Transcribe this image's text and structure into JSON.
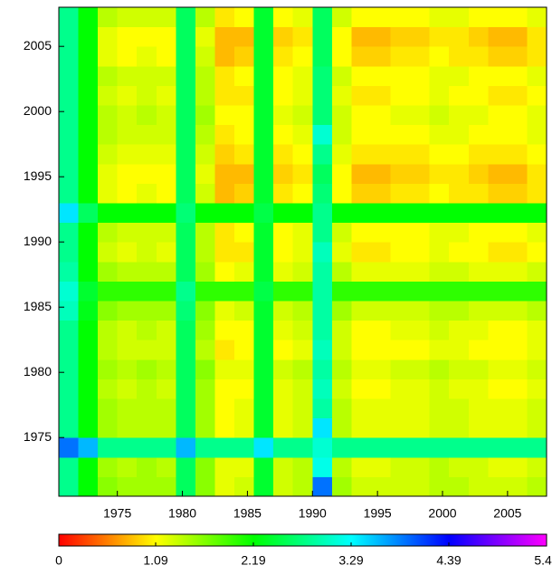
{
  "chart_data": {
    "type": "heatmap",
    "colormap": "hsv",
    "xbins": [
      1970.5,
      1972,
      1973.5,
      1975,
      1976.5,
      1978,
      1979.5,
      1981,
      1982.5,
      1984,
      1985.5,
      1987,
      1988.5,
      1990,
      1991.5,
      1993,
      1994.5,
      1996,
      1997.5,
      1999,
      2000.5,
      2002,
      2003.5,
      2005,
      2006.5,
      2008
    ],
    "ybins": [
      1970.5,
      1972,
      1973.5,
      1975,
      1976.5,
      1978,
      1979.5,
      1981,
      1982.5,
      1984,
      1985.5,
      1987,
      1988.5,
      1990,
      1991.5,
      1993,
      1994.5,
      1996,
      1997.5,
      1999,
      2000.5,
      2002,
      2003.5,
      2005,
      2006.5,
      2008
    ],
    "values": [
      [
        2.8,
        2.2,
        1.6,
        1.5,
        1.5,
        1.5,
        2.6,
        1.6,
        1.2,
        1.3,
        2.4,
        1.3,
        1.4,
        3.9,
        1.5,
        1.3,
        1.3,
        1.3,
        1.3,
        1.4,
        1.4,
        1.3,
        1.3,
        1.3,
        1.4
      ],
      [
        2.8,
        2.2,
        1.5,
        1.4,
        1.5,
        1.4,
        2.6,
        1.6,
        1.2,
        1.2,
        2.4,
        1.3,
        1.4,
        3.2,
        1.4,
        1.2,
        1.2,
        1.3,
        1.3,
        1.4,
        1.3,
        1.3,
        1.2,
        1.2,
        1.3
      ],
      [
        3.9,
        3.6,
        2.8,
        2.8,
        2.8,
        2.8,
        3.6,
        2.8,
        2.8,
        2.8,
        3.4,
        2.8,
        2.8,
        3.1,
        2.8,
        2.8,
        2.8,
        2.8,
        2.8,
        2.8,
        2.8,
        2.8,
        2.8,
        2.8,
        2.8
      ],
      [
        2.8,
        2.2,
        1.5,
        1.4,
        1.4,
        1.4,
        2.6,
        1.5,
        1.1,
        1.2,
        2.4,
        1.2,
        1.3,
        3.4,
        1.4,
        1.2,
        1.2,
        1.2,
        1.2,
        1.3,
        1.3,
        1.2,
        1.2,
        1.2,
        1.3
      ],
      [
        2.8,
        2.2,
        1.5,
        1.4,
        1.4,
        1.4,
        2.6,
        1.5,
        1.1,
        1.2,
        2.4,
        1.2,
        1.3,
        2.9,
        1.4,
        1.2,
        1.2,
        1.2,
        1.2,
        1.3,
        1.3,
        1.2,
        1.2,
        1.2,
        1.3
      ],
      [
        2.8,
        2.2,
        1.4,
        1.3,
        1.4,
        1.3,
        2.6,
        1.5,
        1.1,
        1.1,
        2.4,
        1.2,
        1.3,
        3.0,
        1.3,
        1.1,
        1.1,
        1.2,
        1.2,
        1.3,
        1.2,
        1.2,
        1.1,
        1.1,
        1.2
      ],
      [
        2.8,
        2.2,
        1.5,
        1.4,
        1.5,
        1.4,
        2.6,
        1.6,
        1.2,
        1.2,
        2.4,
        1.3,
        1.4,
        2.9,
        1.4,
        1.2,
        1.2,
        1.3,
        1.3,
        1.4,
        1.3,
        1.3,
        1.2,
        1.2,
        1.3
      ],
      [
        2.8,
        2.2,
        1.4,
        1.3,
        1.3,
        1.3,
        2.6,
        1.4,
        1.0,
        1.1,
        2.4,
        1.1,
        1.2,
        3.0,
        1.3,
        1.1,
        1.1,
        1.1,
        1.1,
        1.2,
        1.2,
        1.1,
        1.1,
        1.1,
        1.2
      ],
      [
        2.8,
        2.2,
        1.4,
        1.3,
        1.4,
        1.3,
        2.6,
        1.5,
        1.1,
        1.1,
        2.4,
        1.2,
        1.3,
        2.9,
        1.3,
        1.1,
        1.1,
        1.2,
        1.2,
        1.3,
        1.2,
        1.2,
        1.1,
        1.1,
        1.2
      ],
      [
        3.0,
        2.3,
        1.6,
        1.5,
        1.5,
        1.5,
        2.7,
        1.6,
        1.2,
        1.3,
        2.4,
        1.3,
        1.4,
        2.9,
        1.5,
        1.3,
        1.3,
        1.3,
        1.3,
        1.4,
        1.4,
        1.3,
        1.3,
        1.3,
        1.4
      ],
      [
        3.1,
        2.4,
        2.0,
        2.0,
        2.0,
        2.0,
        2.8,
        2.0,
        2.0,
        2.0,
        2.5,
        2.0,
        2.0,
        2.9,
        2.0,
        2.0,
        2.0,
        2.0,
        2.0,
        2.0,
        2.0,
        2.0,
        2.0,
        2.0,
        2.0
      ],
      [
        2.9,
        2.2,
        1.5,
        1.4,
        1.4,
        1.4,
        2.6,
        1.5,
        1.1,
        1.2,
        2.4,
        1.2,
        1.3,
        2.9,
        1.4,
        1.2,
        1.2,
        1.2,
        1.2,
        1.3,
        1.3,
        1.2,
        1.2,
        1.2,
        1.3
      ],
      [
        2.8,
        2.2,
        1.3,
        1.2,
        1.3,
        1.2,
        2.6,
        1.4,
        1.0,
        1.0,
        2.4,
        1.1,
        1.2,
        3.0,
        1.2,
        1.0,
        1.0,
        1.1,
        1.1,
        1.2,
        1.1,
        1.1,
        1.0,
        1.0,
        1.1
      ],
      [
        2.8,
        2.2,
        1.4,
        1.3,
        1.3,
        1.3,
        2.6,
        1.4,
        1.0,
        1.1,
        2.4,
        1.1,
        1.2,
        2.8,
        1.3,
        1.1,
        1.1,
        1.1,
        1.1,
        1.2,
        1.2,
        1.1,
        1.1,
        1.1,
        1.2
      ],
      [
        3.4,
        2.6,
        2.2,
        2.2,
        2.2,
        2.2,
        2.7,
        2.2,
        2.2,
        2.2,
        2.5,
        2.2,
        2.2,
        2.8,
        2.2,
        2.2,
        2.2,
        2.2,
        2.2,
        2.2,
        2.2,
        2.2,
        2.2,
        2.2,
        2.2
      ],
      [
        2.8,
        2.2,
        1.2,
        1.1,
        1.2,
        1.1,
        2.6,
        1.3,
        0.8,
        0.9,
        2.4,
        1.0,
        1.1,
        2.7,
        1.1,
        0.9,
        0.9,
        1.0,
        1.0,
        1.1,
        1.0,
        1.0,
        0.9,
        0.9,
        1.0
      ],
      [
        2.8,
        2.2,
        1.2,
        1.1,
        1.1,
        1.1,
        2.6,
        1.2,
        0.8,
        0.8,
        2.4,
        0.9,
        1.0,
        2.6,
        1.1,
        0.8,
        0.8,
        0.9,
        0.9,
        1.0,
        1.0,
        0.9,
        0.8,
        0.8,
        1.0
      ],
      [
        2.8,
        2.2,
        1.3,
        1.2,
        1.2,
        1.2,
        2.6,
        1.3,
        0.9,
        1.0,
        2.4,
        1.0,
        1.1,
        2.8,
        1.2,
        1.0,
        1.0,
        1.0,
        1.0,
        1.1,
        1.1,
        1.0,
        1.0,
        1.0,
        1.1
      ],
      [
        2.8,
        2.2,
        1.4,
        1.3,
        1.3,
        1.3,
        2.6,
        1.4,
        1.0,
        1.1,
        2.4,
        1.1,
        1.2,
        3.1,
        1.3,
        1.1,
        1.1,
        1.1,
        1.1,
        1.2,
        1.2,
        1.1,
        1.1,
        1.1,
        1.2
      ],
      [
        2.8,
        2.2,
        1.4,
        1.3,
        1.4,
        1.3,
        2.6,
        1.5,
        1.1,
        1.1,
        2.4,
        1.2,
        1.3,
        2.7,
        1.3,
        1.1,
        1.1,
        1.2,
        1.2,
        1.3,
        1.2,
        1.2,
        1.1,
        1.1,
        1.2
      ],
      [
        2.8,
        2.2,
        1.3,
        1.2,
        1.3,
        1.2,
        2.6,
        1.4,
        1.0,
        1.0,
        2.4,
        1.1,
        1.2,
        2.7,
        1.2,
        1.0,
        1.0,
        1.1,
        1.1,
        1.2,
        1.1,
        1.1,
        1.0,
        1.0,
        1.1
      ],
      [
        2.8,
        2.2,
        1.4,
        1.3,
        1.3,
        1.3,
        2.6,
        1.4,
        1.0,
        1.1,
        2.4,
        1.1,
        1.2,
        2.7,
        1.3,
        1.1,
        1.1,
        1.1,
        1.1,
        1.2,
        1.2,
        1.1,
        1.1,
        1.1,
        1.2
      ],
      [
        2.8,
        2.2,
        1.2,
        1.1,
        1.2,
        1.1,
        2.6,
        1.3,
        0.8,
        0.9,
        2.4,
        1.0,
        1.1,
        2.6,
        1.1,
        0.9,
        0.9,
        1.0,
        1.0,
        1.1,
        1.0,
        1.0,
        0.9,
        0.9,
        1.0
      ],
      [
        2.8,
        2.2,
        1.2,
        1.1,
        1.1,
        1.1,
        2.6,
        1.2,
        0.8,
        0.8,
        2.4,
        0.9,
        1.0,
        2.6,
        1.1,
        0.8,
        0.8,
        0.9,
        0.9,
        1.0,
        1.0,
        0.9,
        0.8,
        0.8,
        1.0
      ],
      [
        2.8,
        2.2,
        1.4,
        1.3,
        1.3,
        1.3,
        2.6,
        1.4,
        1.0,
        1.1,
        2.4,
        1.1,
        1.2,
        2.6,
        1.3,
        1.1,
        1.1,
        1.1,
        1.1,
        1.2,
        1.2,
        1.1,
        1.1,
        1.1,
        1.2
      ]
    ],
    "xlim": [
      1970.5,
      2008
    ],
    "ylim": [
      1970.5,
      2008
    ],
    "xticks": [
      1975,
      1980,
      1985,
      1990,
      1995,
      2000,
      2005
    ],
    "yticks": [
      1975,
      1980,
      1985,
      1990,
      1995,
      2000,
      2005
    ],
    "clim": [
      0,
      5.49
    ],
    "colorbar_ticks": [
      0,
      1.09,
      2.19,
      3.29,
      4.39,
      5.49
    ]
  }
}
